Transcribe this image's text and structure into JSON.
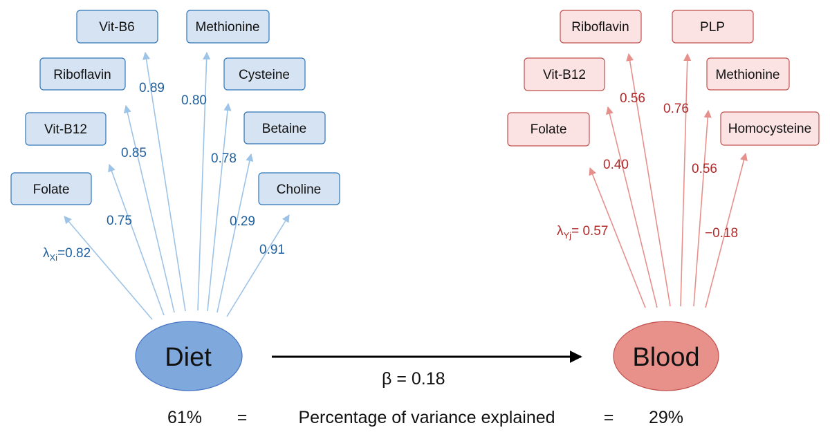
{
  "diet": {
    "label": "Diet",
    "fill": "#7fa8dc",
    "indicators": [
      {
        "name": "Folate",
        "loading": "0.82",
        "loading_prefix": "λ",
        "loading_sub": "Xi",
        "loading_eq": "="
      },
      {
        "name": "Vit-B12",
        "loading": "0.75"
      },
      {
        "name": "Riboflavin",
        "loading": "0.85"
      },
      {
        "name": "Vit-B6",
        "loading": "0.89"
      },
      {
        "name": "Methionine",
        "loading": "0.80"
      },
      {
        "name": "Cysteine",
        "loading": "0.78"
      },
      {
        "name": "Betaine",
        "loading": "0.29"
      },
      {
        "name": "Choline",
        "loading": "0.91"
      }
    ]
  },
  "blood": {
    "label": "Blood",
    "fill": "#e8918a",
    "indicators": [
      {
        "name": "Folate",
        "loading": "0.57",
        "loading_prefix": "λ",
        "loading_sub": "Yj",
        "loading_eq": "= "
      },
      {
        "name": "Vit-B12",
        "loading": "0.40"
      },
      {
        "name": "Riboflavin",
        "loading": "0.56"
      },
      {
        "name": "PLP",
        "loading": "0.76"
      },
      {
        "name": "Methionine",
        "loading": "0.56"
      },
      {
        "name": "Homocysteine",
        "loading": "−0.18"
      }
    ]
  },
  "path": {
    "symbol": "β",
    "equals": " = ",
    "value": "0.18"
  },
  "variance": {
    "diet_value": "61%",
    "eq_left": "=",
    "label": "Percentage of variance explained",
    "eq_right": "=",
    "blood_value": "29%"
  }
}
